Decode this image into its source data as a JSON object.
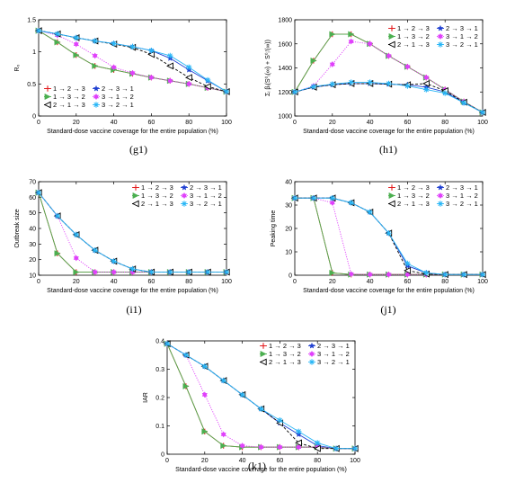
{
  "legend": {
    "entries": [
      {
        "label": "1 → 2 → 3",
        "color": "#e31a1c",
        "marker": "plus"
      },
      {
        "label": "2 → 3 → 1",
        "color": "#1f3fd1",
        "marker": "star"
      },
      {
        "label": "1 → 3 → 2",
        "color": "#4caf50",
        "marker": "triangle-right"
      },
      {
        "label": "3 → 1 → 2",
        "color": "#e040fb",
        "marker": "hexagram"
      },
      {
        "label": "2 → 1 → 3",
        "color": "#000000",
        "marker": "triangle-left"
      },
      {
        "label": "3 → 2 → 1",
        "color": "#29b6f6",
        "marker": "asterisk"
      }
    ]
  },
  "chart_data": [
    {
      "id": "g1",
      "caption": "(g1)",
      "type": "line",
      "xlabel": "Standard-dose vaccine coverage for the entire population (%)",
      "ylabel": "R₀",
      "xlim": [
        0,
        100
      ],
      "ylim": [
        0,
        1.5
      ],
      "xticks": [
        0,
        20,
        40,
        60,
        80,
        100
      ],
      "yticks": [
        0,
        0.5,
        1,
        1.5
      ],
      "ytick_labels": [
        "0",
        "0.5",
        "1",
        "1.5"
      ],
      "legend_position": "bottom-left",
      "x": [
        0,
        10,
        20,
        30,
        40,
        50,
        60,
        70,
        80,
        90,
        100
      ],
      "series": [
        {
          "name": "1 → 2 → 3",
          "values": [
            1.33,
            1.15,
            0.95,
            0.78,
            0.72,
            0.66,
            0.6,
            0.55,
            0.5,
            0.44,
            0.38
          ]
        },
        {
          "name": "2 → 3 → 1",
          "values": [
            1.33,
            1.28,
            1.22,
            1.17,
            1.13,
            1.08,
            1.02,
            0.9,
            0.72,
            0.55,
            0.38
          ]
        },
        {
          "name": "1 → 3 → 2",
          "values": [
            1.33,
            1.15,
            0.95,
            0.78,
            0.72,
            0.66,
            0.6,
            0.55,
            0.5,
            0.44,
            0.38
          ]
        },
        {
          "name": "3 → 1 → 2",
          "values": [
            1.33,
            1.26,
            1.12,
            0.94,
            0.76,
            0.67,
            0.6,
            0.55,
            0.5,
            0.44,
            0.38
          ]
        },
        {
          "name": "2 → 1 → 3",
          "values": [
            1.33,
            1.28,
            1.22,
            1.17,
            1.12,
            1.07,
            0.96,
            0.78,
            0.6,
            0.46,
            0.38
          ]
        },
        {
          "name": "3 → 2 → 1",
          "values": [
            1.33,
            1.28,
            1.22,
            1.17,
            1.13,
            1.08,
            1.02,
            0.94,
            0.76,
            0.56,
            0.38
          ]
        }
      ]
    },
    {
      "id": "h1",
      "caption": "(h1)",
      "type": "line",
      "xlabel": "Standard-dose vaccine coverage for the entire population (%)",
      "ylabel": "Σᵢ βᵢ(S⁰ᵢ(∞) + S⁰ᵢ′(∞))",
      "xlim": [
        0,
        100
      ],
      "ylim": [
        1000,
        1800
      ],
      "xticks": [
        0,
        20,
        40,
        60,
        80,
        100
      ],
      "yticks": [
        1000,
        1200,
        1400,
        1600,
        1800
      ],
      "ytick_labels": [
        "1000",
        "1200",
        "1400",
        "1600",
        "1800"
      ],
      "legend_position": "top-right",
      "x": [
        0,
        10,
        20,
        30,
        40,
        50,
        60,
        70,
        80,
        90,
        100
      ],
      "series": [
        {
          "name": "1 → 2 → 3",
          "values": [
            1200,
            1460,
            1680,
            1680,
            1600,
            1500,
            1410,
            1320,
            1220,
            1120,
            1030
          ]
        },
        {
          "name": "2 → 3 → 1",
          "values": [
            1200,
            1240,
            1260,
            1270,
            1270,
            1265,
            1260,
            1240,
            1200,
            1110,
            1030
          ]
        },
        {
          "name": "1 → 3 → 2",
          "values": [
            1200,
            1460,
            1680,
            1680,
            1600,
            1500,
            1410,
            1320,
            1220,
            1120,
            1030
          ]
        },
        {
          "name": "3 → 1 → 2",
          "values": [
            1200,
            1250,
            1430,
            1620,
            1600,
            1500,
            1410,
            1320,
            1220,
            1120,
            1030
          ]
        },
        {
          "name": "2 → 1 → 3",
          "values": [
            1200,
            1240,
            1260,
            1270,
            1270,
            1265,
            1260,
            1270,
            1210,
            1115,
            1030
          ]
        },
        {
          "name": "3 → 2 → 1",
          "values": [
            1200,
            1245,
            1265,
            1280,
            1280,
            1270,
            1250,
            1220,
            1190,
            1110,
            1030
          ]
        }
      ]
    },
    {
      "id": "i1",
      "caption": "(i1)",
      "type": "line",
      "xlabel": "Standard-dose vaccine coverage for the entire population (%)",
      "ylabel": "Outbreak size",
      "xlim": [
        0,
        100
      ],
      "ylim": [
        10,
        70
      ],
      "xticks": [
        0,
        20,
        40,
        60,
        80,
        100
      ],
      "yticks": [
        10,
        20,
        30,
        40,
        50,
        60,
        70
      ],
      "ytick_labels": [
        "10",
        "20",
        "30",
        "40",
        "50",
        "60",
        "70"
      ],
      "legend_position": "top-right",
      "x": [
        0,
        10,
        20,
        30,
        40,
        50,
        60,
        70,
        80,
        90,
        100
      ],
      "series": [
        {
          "name": "1 → 2 → 3",
          "values": [
            63,
            24,
            12,
            12,
            12,
            12,
            12,
            12,
            12,
            12,
            12
          ]
        },
        {
          "name": "2 → 3 → 1",
          "values": [
            63,
            48,
            36,
            26,
            19,
            14,
            12,
            12,
            12,
            12,
            12
          ]
        },
        {
          "name": "1 → 3 → 2",
          "values": [
            63,
            24,
            12,
            12,
            12,
            12,
            12,
            12,
            12,
            12,
            12
          ]
        },
        {
          "name": "3 → 1 → 2",
          "values": [
            63,
            48,
            21,
            12,
            12,
            12,
            12,
            12,
            12,
            12,
            12
          ]
        },
        {
          "name": "2 → 1 → 3",
          "values": [
            63,
            48,
            36,
            26,
            19,
            14,
            12,
            12,
            12,
            12,
            12
          ]
        },
        {
          "name": "3 → 2 → 1",
          "values": [
            63,
            48,
            36,
            26,
            19,
            14,
            12,
            12,
            12,
            12,
            12
          ]
        }
      ]
    },
    {
      "id": "j1",
      "caption": "(j1)",
      "type": "line",
      "xlabel": "Standard-dose vaccine coverage for the entire population (%)",
      "ylabel": "Peaking time",
      "xlim": [
        0,
        100
      ],
      "ylim": [
        0,
        40
      ],
      "xticks": [
        0,
        20,
        40,
        60,
        80,
        100
      ],
      "yticks": [
        0,
        10,
        20,
        30,
        40
      ],
      "ytick_labels": [
        "0",
        "10",
        "20",
        "30",
        "40"
      ],
      "legend_position": "top-right",
      "x": [
        0,
        10,
        20,
        30,
        40,
        50,
        60,
        70,
        80,
        90,
        100
      ],
      "series": [
        {
          "name": "1 → 2 → 3",
          "values": [
            33,
            33,
            1,
            0.3,
            0.3,
            0.3,
            0.3,
            0.3,
            0.3,
            0.3,
            0.3
          ]
        },
        {
          "name": "2 → 3 → 1",
          "values": [
            33,
            33,
            33,
            31,
            27,
            18,
            4,
            1,
            0.3,
            0.3,
            0.3
          ]
        },
        {
          "name": "1 → 3 → 2",
          "values": [
            33,
            33,
            1,
            0.3,
            0.3,
            0.3,
            0.3,
            0.3,
            0.3,
            0.3,
            0.3
          ]
        },
        {
          "name": "3 → 1 → 2",
          "values": [
            33,
            33,
            31,
            0.5,
            0.3,
            0.3,
            0.3,
            0.3,
            0.3,
            0.3,
            0.3
          ]
        },
        {
          "name": "2 → 1 → 3",
          "values": [
            33,
            33,
            33,
            31,
            27,
            18,
            2,
            0.5,
            0.3,
            0.3,
            0.3
          ]
        },
        {
          "name": "3 → 2 → 1",
          "values": [
            33,
            33,
            33,
            31,
            27,
            18,
            5,
            1,
            0.3,
            0.3,
            0.3
          ]
        }
      ]
    },
    {
      "id": "k1",
      "caption": "(k1)",
      "type": "line",
      "xlabel": "Standard-dose vaccine coverage for the entire population (%)",
      "ylabel": "IAR",
      "xlim": [
        0,
        100
      ],
      "ylim": [
        0,
        0.4
      ],
      "xticks": [
        0,
        20,
        40,
        60,
        80,
        100
      ],
      "yticks": [
        0,
        0.1,
        0.2,
        0.3,
        0.4
      ],
      "ytick_labels": [
        "0",
        "0.1",
        "0.2",
        "0.3",
        "0.4"
      ],
      "legend_position": "top-right",
      "x": [
        0,
        10,
        20,
        30,
        40,
        50,
        60,
        70,
        80,
        90,
        100
      ],
      "series": [
        {
          "name": "1 → 2 → 3",
          "values": [
            0.39,
            0.24,
            0.08,
            0.03,
            0.025,
            0.025,
            0.025,
            0.025,
            0.025,
            0.02,
            0.02
          ]
        },
        {
          "name": "2 → 3 → 1",
          "values": [
            0.39,
            0.35,
            0.31,
            0.26,
            0.21,
            0.16,
            0.11,
            0.07,
            0.03,
            0.02,
            0.02
          ]
        },
        {
          "name": "1 → 3 → 2",
          "values": [
            0.39,
            0.24,
            0.08,
            0.03,
            0.025,
            0.025,
            0.025,
            0.025,
            0.025,
            0.02,
            0.02
          ]
        },
        {
          "name": "3 → 1 → 2",
          "values": [
            0.39,
            0.35,
            0.21,
            0.07,
            0.03,
            0.025,
            0.025,
            0.025,
            0.025,
            0.02,
            0.02
          ]
        },
        {
          "name": "2 → 1 → 3",
          "values": [
            0.39,
            0.35,
            0.31,
            0.26,
            0.21,
            0.16,
            0.11,
            0.04,
            0.02,
            0.02,
            0.02
          ]
        },
        {
          "name": "3 → 2 → 1",
          "values": [
            0.39,
            0.35,
            0.31,
            0.26,
            0.21,
            0.16,
            0.12,
            0.08,
            0.04,
            0.02,
            0.02
          ]
        }
      ]
    }
  ]
}
